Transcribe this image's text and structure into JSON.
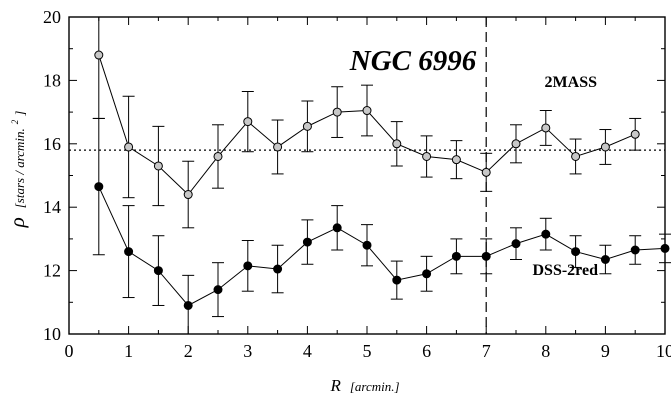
{
  "chart_data": {
    "type": "scatter",
    "title": "NGC 6996",
    "xlabel": {
      "symbol": "R",
      "unit": "[arcmin.]"
    },
    "ylabel": {
      "symbol": "ρ",
      "unit": "[stars / arcmin.",
      "unit_sup": "2",
      "unit_end": "]"
    },
    "xlim": [
      0,
      10
    ],
    "ylim": [
      10,
      20
    ],
    "xticks": [
      0,
      1,
      2,
      3,
      4,
      5,
      6,
      7,
      8,
      9,
      10
    ],
    "yticks": [
      10,
      12,
      14,
      16,
      18,
      20
    ],
    "grid": false,
    "reference_lines": [
      {
        "orientation": "horizontal",
        "value": 15.8,
        "style": "dotted"
      },
      {
        "orientation": "vertical",
        "value": 7,
        "style": "dashed"
      }
    ],
    "series": [
      {
        "name": "2MASS",
        "marker_fill": "#c8c8c8",
        "x": [
          0.5,
          1,
          1.5,
          2,
          2.5,
          3,
          3.5,
          4,
          4.5,
          5,
          5.5,
          6,
          6.5,
          7,
          7.5,
          8,
          8.5,
          9,
          9.5
        ],
        "y": [
          18.8,
          15.9,
          15.3,
          14.4,
          15.6,
          16.7,
          15.9,
          16.55,
          17.0,
          17.05,
          16.0,
          15.6,
          15.5,
          15.1,
          16.0,
          16.5,
          15.6,
          15.9,
          16.3
        ],
        "err": [
          2.0,
          1.6,
          1.25,
          1.05,
          1.0,
          0.95,
          0.85,
          0.8,
          0.8,
          0.8,
          0.7,
          0.65,
          0.6,
          0.6,
          0.6,
          0.55,
          0.55,
          0.55,
          0.5
        ]
      },
      {
        "name": "DSS-2red",
        "marker_fill": "#000000",
        "x": [
          0.5,
          1,
          1.5,
          2,
          2.5,
          3,
          3.5,
          4,
          4.5,
          5,
          5.5,
          6,
          6.5,
          7,
          7.5,
          8,
          8.5,
          9,
          9.5,
          10
        ],
        "y": [
          14.65,
          12.6,
          12.0,
          10.9,
          11.4,
          12.15,
          12.05,
          12.9,
          13.35,
          12.8,
          11.7,
          11.9,
          12.45,
          12.45,
          12.85,
          13.15,
          12.6,
          12.35,
          12.65,
          12.7
        ],
        "err": [
          2.15,
          1.45,
          1.1,
          0.95,
          0.85,
          0.8,
          0.75,
          0.7,
          0.7,
          0.65,
          0.6,
          0.55,
          0.55,
          0.55,
          0.5,
          0.5,
          0.5,
          0.45,
          0.45,
          0.45
        ]
      }
    ]
  }
}
